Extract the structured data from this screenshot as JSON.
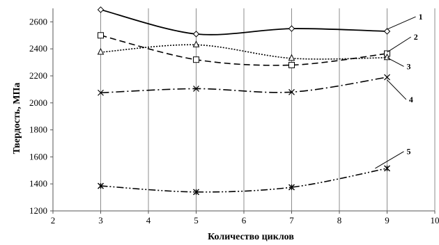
{
  "chart_data": {
    "type": "line",
    "caption": "",
    "xlabel": "Количество циклов",
    "ylabel": "Твердость, МПа",
    "xlim": [
      2,
      10
    ],
    "ylim": [
      1200,
      2700
    ],
    "xticks": [
      2,
      3,
      4,
      5,
      6,
      7,
      8,
      9,
      10
    ],
    "yticks": [
      1200,
      1400,
      1600,
      1800,
      2000,
      2200,
      2400,
      2600
    ],
    "grid": "vertical",
    "x": [
      3,
      5,
      7,
      9
    ],
    "series": [
      {
        "name": "1",
        "values": [
          2690,
          2510,
          2550,
          2530
        ],
        "marker": "diamond",
        "line": "solid"
      },
      {
        "name": "2",
        "values": [
          2500,
          2320,
          2280,
          2365
        ],
        "marker": "square",
        "line": "dashed"
      },
      {
        "name": "3",
        "values": [
          2375,
          2430,
          2330,
          2335
        ],
        "marker": "triangle",
        "line": "dotted"
      },
      {
        "name": "4",
        "values": [
          2075,
          2105,
          2080,
          2190
        ],
        "marker": "x",
        "line": "dash-dot"
      },
      {
        "name": "5",
        "values": [
          1385,
          1340,
          1375,
          1515
        ],
        "marker": "star",
        "line": "dash-dot-dot"
      }
    ],
    "callouts": [
      {
        "series": "1",
        "label": "1",
        "from": [
          9.0,
          2545
        ],
        "to": [
          9.6,
          2638
        ]
      },
      {
        "series": "2",
        "label": "2",
        "from": [
          9.0,
          2375
        ],
        "to": [
          9.5,
          2488
        ]
      },
      {
        "series": "3",
        "label": "3",
        "from": [
          9.0,
          2335
        ],
        "to": [
          9.35,
          2270
        ]
      },
      {
        "series": "4",
        "label": "4",
        "from": [
          9.0,
          2170
        ],
        "to": [
          9.4,
          2025
        ]
      },
      {
        "series": "5",
        "label": "5",
        "from": [
          8.75,
          1515
        ],
        "to": [
          9.35,
          1640
        ]
      }
    ]
  }
}
